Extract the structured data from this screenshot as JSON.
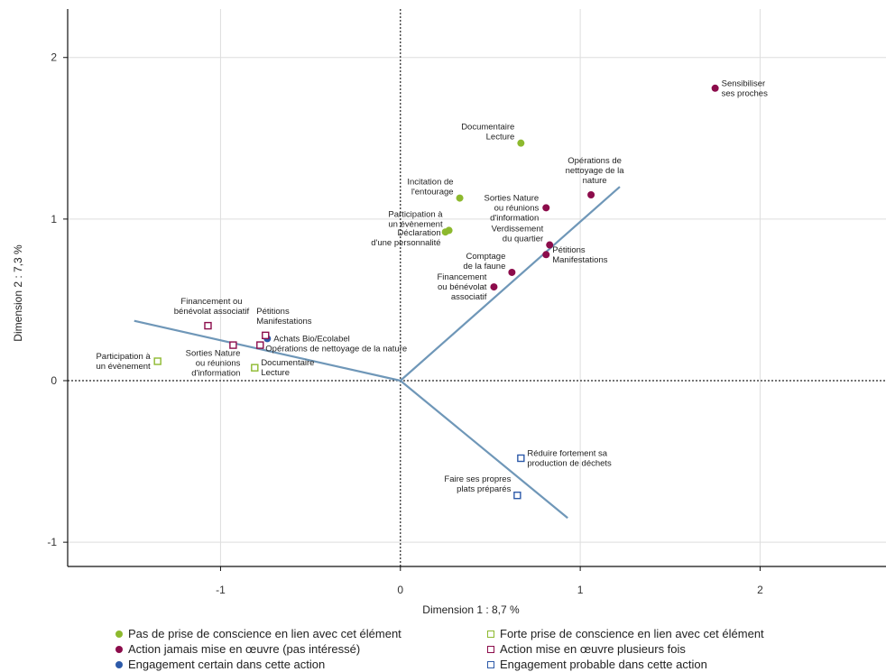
{
  "chart_data": {
    "type": "scatter",
    "xlabel": "Dimension 1 : 8,7 %",
    "ylabel": "Dimension 2 : 7,3 %",
    "xlim": [
      -1.85,
      2.7
    ],
    "ylim": [
      -1.15,
      2.3
    ],
    "xticks": [
      -1,
      0,
      1,
      2
    ],
    "yticks": [
      -1,
      0,
      1,
      2
    ],
    "xtick_labels": [
      "-1",
      "0",
      "1",
      "2"
    ],
    "ytick_labels": [
      "-1",
      "0",
      "1",
      "2"
    ],
    "grid": true,
    "origin_lines": "dotted",
    "legend_position": "bottom",
    "colors": {
      "green": "#8db92e",
      "purple": "#8c0c4b",
      "blue": "#2d5aa9",
      "arrow": "#6f97b8"
    },
    "vectors": [
      {
        "x": 1.22,
        "y": 1.2
      },
      {
        "x": -1.48,
        "y": 0.37
      },
      {
        "x": 0.93,
        "y": -0.85
      }
    ],
    "series": [
      {
        "name": "Pas de prise de conscience en lien avec cet élément",
        "marker": "dot",
        "color": "#8db92e",
        "points": [
          {
            "x": 0.67,
            "y": 1.47,
            "label": [
              "Documentaire",
              "Lecture"
            ],
            "pos": "left-up"
          },
          {
            "x": 0.33,
            "y": 1.13,
            "label": [
              "Incitation de",
              "l'entourage"
            ],
            "pos": "left-up"
          },
          {
            "x": 0.27,
            "y": 0.93,
            "label": [
              "Participation à",
              "un évènement"
            ],
            "pos": "left-up"
          },
          {
            "x": 0.25,
            "y": 0.92,
            "label": [
              "Déclaration",
              "d'une personnalité"
            ],
            "pos": "left-down"
          }
        ]
      },
      {
        "name": "Action jamais mise en œuvre (pas intéressé)",
        "marker": "dot",
        "color": "#8c0c4b",
        "points": [
          {
            "x": 1.75,
            "y": 1.81,
            "label": [
              "Sensibiliser",
              "ses proches"
            ],
            "pos": "right"
          },
          {
            "x": 1.06,
            "y": 1.15,
            "label": [
              "Opérations de",
              "nettoyage de la",
              "nature"
            ],
            "pos": "up"
          },
          {
            "x": 0.81,
            "y": 1.07,
            "label": [
              "Sorties Nature",
              "ou réunions",
              "d'information"
            ],
            "pos": "left"
          },
          {
            "x": 0.83,
            "y": 0.84,
            "label": [
              "Verdissement",
              "du quartier"
            ],
            "pos": "left-up"
          },
          {
            "x": 0.81,
            "y": 0.78,
            "label": [
              "Pétitions",
              "Manifestations"
            ],
            "pos": "right"
          },
          {
            "x": 0.62,
            "y": 0.67,
            "label": [
              "Comptage",
              "de la faune"
            ],
            "pos": "left-up"
          },
          {
            "x": 0.52,
            "y": 0.58,
            "label": [
              "Financement",
              "ou bénévolat",
              "associatif"
            ],
            "pos": "left"
          }
        ]
      },
      {
        "name": "Engagement certain dans cette action",
        "marker": "dot",
        "color": "#2d5aa9",
        "points": [
          {
            "x": -0.74,
            "y": 0.26,
            "label": [
              "Achats Bio/Ecolabel"
            ],
            "pos": "right"
          }
        ]
      },
      {
        "name": "Forte prise de conscience en lien avec cet élément",
        "marker": "square",
        "color": "#8db92e",
        "points": [
          {
            "x": -1.35,
            "y": 0.12,
            "label": [
              "Participation à",
              "un évènement"
            ],
            "pos": "left"
          },
          {
            "x": -0.81,
            "y": 0.08,
            "label": [
              "Documentaire",
              "Lecture"
            ],
            "pos": "right"
          }
        ]
      },
      {
        "name": "Action mise en œuvre plusieurs fois",
        "marker": "square",
        "color": "#8c0c4b",
        "points": [
          {
            "x": -1.07,
            "y": 0.34,
            "label": [
              "Financement ou",
              "bénévolat associatif"
            ],
            "pos": "up"
          },
          {
            "x": -0.75,
            "y": 0.28,
            "label": [
              "Pétitions",
              "Manifestations"
            ],
            "pos": "up-right"
          },
          {
            "x": -0.93,
            "y": 0.22,
            "label": [
              "Sorties Nature",
              "ou réunions",
              "d'information"
            ],
            "pos": "down-left"
          },
          {
            "x": -0.78,
            "y": 0.22,
            "label": [
              "Opérations de nettoyage de la nature"
            ],
            "pos": "right-down"
          }
        ]
      },
      {
        "name": "Engagement probable dans cette action",
        "marker": "square",
        "color": "#2d5aa9",
        "points": [
          {
            "x": 0.67,
            "y": -0.48,
            "label": [
              "Réduire fortement sa",
              "production de déchets"
            ],
            "pos": "right"
          },
          {
            "x": 0.65,
            "y": -0.71,
            "label": [
              "Faire ses propres",
              "plats préparés"
            ],
            "pos": "left-up"
          }
        ]
      }
    ]
  },
  "legend": [
    {
      "label": "Pas de prise de conscience en lien avec cet élément",
      "marker": "dot",
      "color": "#8db92e"
    },
    {
      "label": "Forte prise de conscience en lien avec cet élément",
      "marker": "square",
      "color": "#8db92e"
    },
    {
      "label": "Action jamais mise en œuvre (pas intéressé)",
      "marker": "dot",
      "color": "#8c0c4b"
    },
    {
      "label": "Action mise en œuvre plusieurs fois",
      "marker": "square",
      "color": "#8c0c4b"
    },
    {
      "label": "Engagement certain dans cette action",
      "marker": "dot",
      "color": "#2d5aa9"
    },
    {
      "label": "Engagement probable dans cette action",
      "marker": "square",
      "color": "#2d5aa9"
    }
  ]
}
